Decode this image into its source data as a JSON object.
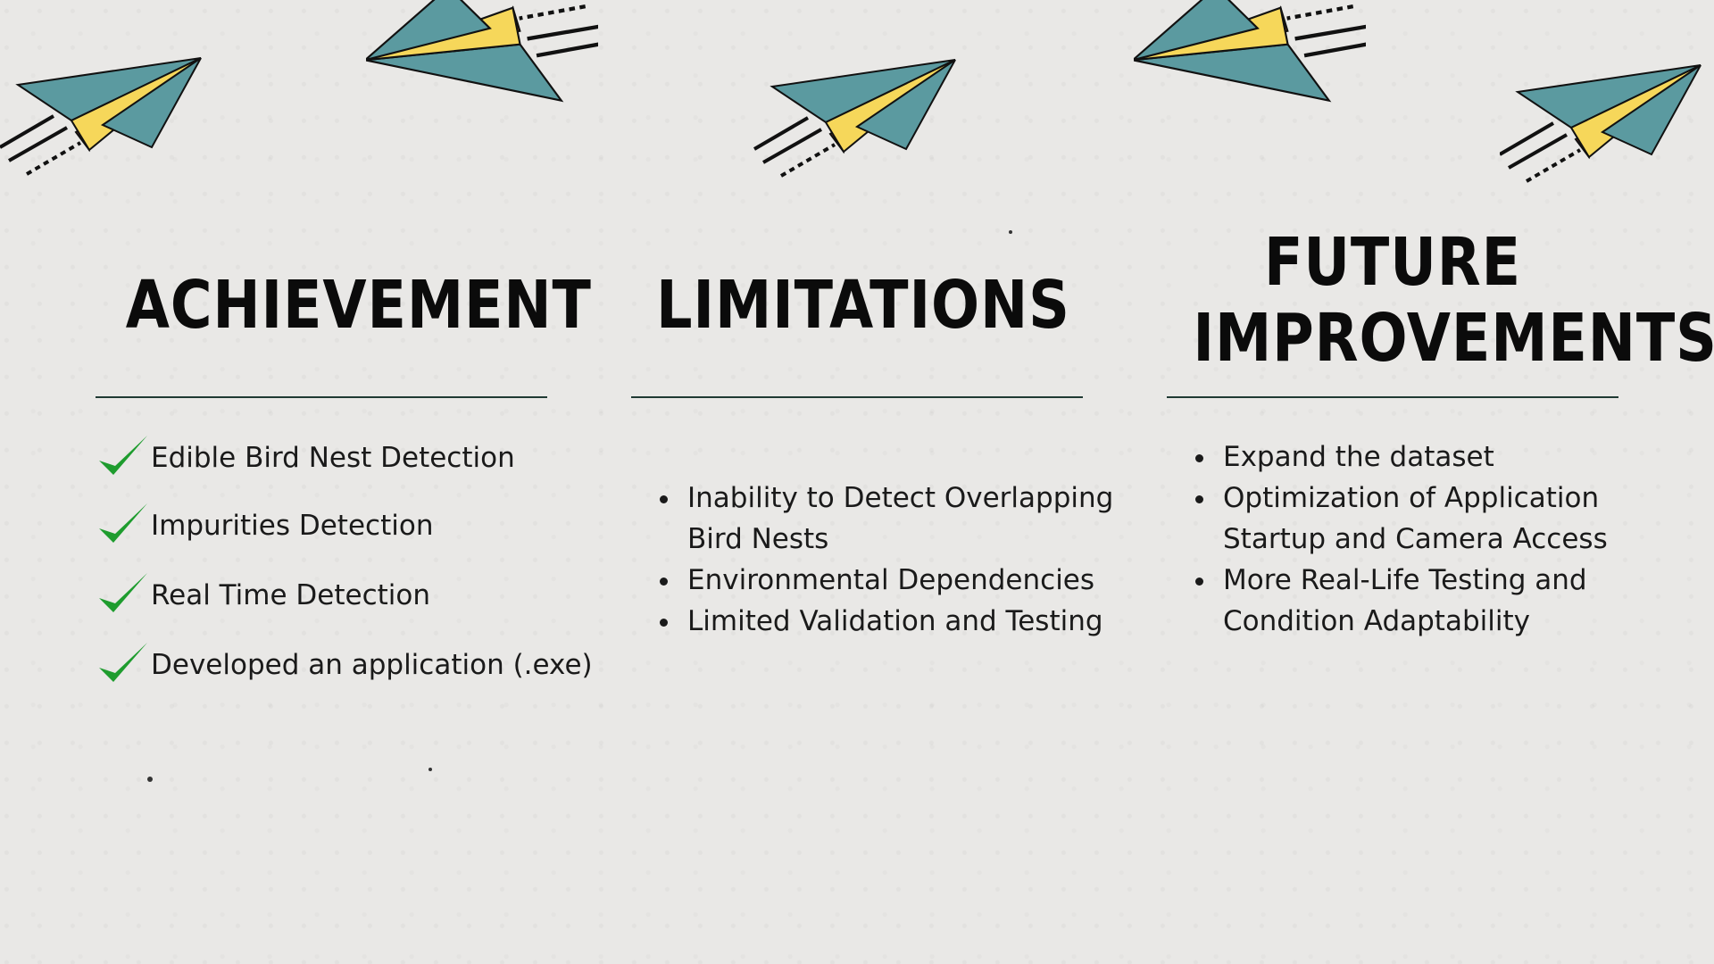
{
  "colors": {
    "plane_blue": "#5b9aa0",
    "plane_yellow": "#f6d75a",
    "plane_red": "#c9533a",
    "check_green": "#1e9c2e",
    "rule": "#1f3a33"
  },
  "icons": [
    "paper-plane-icon",
    "checkmark-icon"
  ],
  "columns": {
    "achievement": {
      "heading": "ACHIEVEMENT",
      "items": [
        "Edible Bird Nest Detection",
        "Impurities Detection",
        "Real Time Detection",
        "Developed an application (.exe)"
      ]
    },
    "limitations": {
      "heading": "LIMITATIONS",
      "items": [
        "Inability to Detect Overlapping Bird Nests",
        "Environmental Dependencies",
        " Limited Validation and Testing"
      ]
    },
    "future": {
      "heading_line1": "FUTURE",
      "heading_line2": "IMPROVEMENTS",
      "items": [
        "Expand the dataset",
        "Optimization of Application Startup and Camera Access",
        " More Real-Life Testing and Condition Adaptability"
      ]
    }
  }
}
